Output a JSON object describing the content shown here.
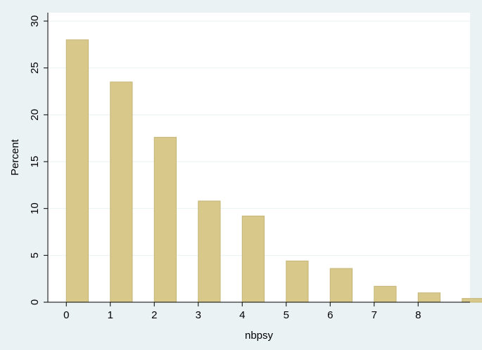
{
  "chart_data": {
    "type": "bar",
    "x_label": "nbpsy",
    "y_label": "Percent",
    "x": [
      0,
      1,
      2,
      3,
      4,
      5,
      6,
      7,
      8,
      9
    ],
    "values": [
      28,
      23.5,
      17.6,
      10.8,
      9.2,
      4.4,
      3.6,
      1.7,
      1.0,
      0.4
    ],
    "color": "#d8c98b",
    "xlim": [
      -0.42,
      9.18
    ],
    "xticks": [
      0,
      1,
      2,
      3,
      4,
      5,
      6,
      7,
      8
    ],
    "ylim": [
      0,
      30.9
    ],
    "yticks": [
      0,
      5,
      10,
      15,
      20,
      25,
      30
    ],
    "grid": true
  }
}
